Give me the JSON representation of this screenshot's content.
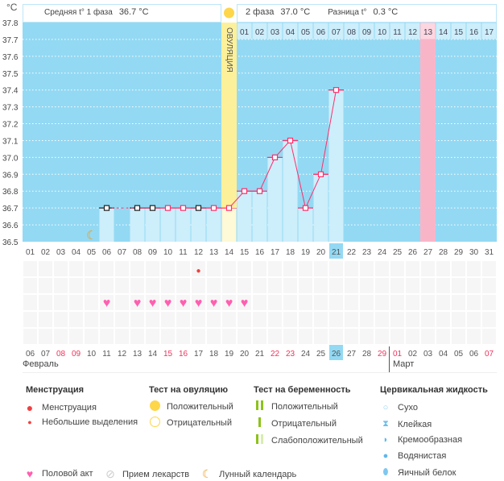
{
  "chart_data": {
    "type": "bar",
    "unit_label": "°C",
    "ylim": [
      36.5,
      37.8
    ],
    "y_ticks": [
      "37.8",
      "37.7",
      "37.6",
      "37.5",
      "37.4",
      "37.3",
      "37.2",
      "37.1",
      "37.0",
      "36.9",
      "36.8",
      "36.7",
      "36.6",
      "36.5"
    ],
    "cycle_days": [
      "01",
      "02",
      "03",
      "04",
      "05",
      "06",
      "07",
      "08",
      "09",
      "10",
      "11",
      "12",
      "13",
      "14",
      "15",
      "16",
      "17",
      "18",
      "19",
      "20",
      "21",
      "22",
      "23",
      "24",
      "25",
      "26",
      "27",
      "28",
      "29",
      "30",
      "31"
    ],
    "current_cycle_day": "21",
    "temperatures": [
      null,
      null,
      null,
      null,
      null,
      36.7,
      null,
      36.7,
      36.7,
      36.7,
      36.7,
      36.7,
      36.7,
      36.7,
      36.8,
      36.8,
      37.0,
      37.1,
      36.7,
      36.9,
      37.4,
      null,
      null,
      null,
      null,
      null,
      null,
      null,
      null,
      null,
      null
    ],
    "marker_black_days": [
      6,
      8,
      9,
      12
    ],
    "ovulation_day": 14,
    "ovulation_label": "ОВУЛЯЦИЯ",
    "luteal_days": [
      "01",
      "02",
      "03",
      "04",
      "05",
      "06",
      "07",
      "08",
      "09",
      "10",
      "11",
      "12",
      "13",
      "14",
      "15",
      "16",
      "17"
    ],
    "highlight_luteal_day": "13",
    "moon_day": 5,
    "spotting_days": [
      12
    ],
    "intercourse_days": [
      6,
      8,
      9,
      10,
      11,
      12,
      13,
      14,
      15
    ],
    "dates": [
      "06",
      "07",
      "08",
      "09",
      "10",
      "11",
      "12",
      "13",
      "14",
      "15",
      "16",
      "17",
      "18",
      "19",
      "20",
      "21",
      "22",
      "23",
      "24",
      "25",
      "26",
      "27",
      "28",
      "29",
      "01",
      "02",
      "03",
      "04",
      "05",
      "06",
      "07"
    ],
    "weekend_dates_idx": [
      2,
      3,
      9,
      10,
      16,
      17,
      23,
      24,
      30
    ],
    "today_date": "26",
    "months": [
      "Февраль",
      "Март"
    ],
    "phase1_label": "Средняя t° 1 фаза",
    "phase1_value": "36.7 °C",
    "phase2_label": "2 фаза",
    "phase2_value": "37.0 °C",
    "diff_label": "Разница t°",
    "diff_value": "0.3 °C"
  },
  "legend": {
    "menstruation": {
      "title": "Менструация",
      "items": [
        "Менструация",
        "Небольшие выделения"
      ]
    },
    "ovulation_test": {
      "title": "Тест на овуляцию",
      "items": [
        "Положительный",
        "Отрицательный"
      ]
    },
    "pregnancy_test": {
      "title": "Тест на беременность",
      "items": [
        "Положительный",
        "Отрицательный",
        "Слабоположительный"
      ]
    },
    "cervical": {
      "title": "Цервикальная жидкость",
      "items": [
        "Сухо",
        "Клейкая",
        "Кремообразная",
        "Водянистая",
        "Яичный белок"
      ]
    },
    "other": [
      "Половой акт",
      "Прием лекарств",
      "Лунный календарь"
    ]
  },
  "colors": {
    "sky": "#93d9f3",
    "bar": "#cdeefb",
    "line": "#ff2e6a",
    "ovulation": "#fdf09a",
    "pink": "#f9b5c8",
    "heart": "#ff5fb0",
    "weekend": "#f0325a"
  }
}
